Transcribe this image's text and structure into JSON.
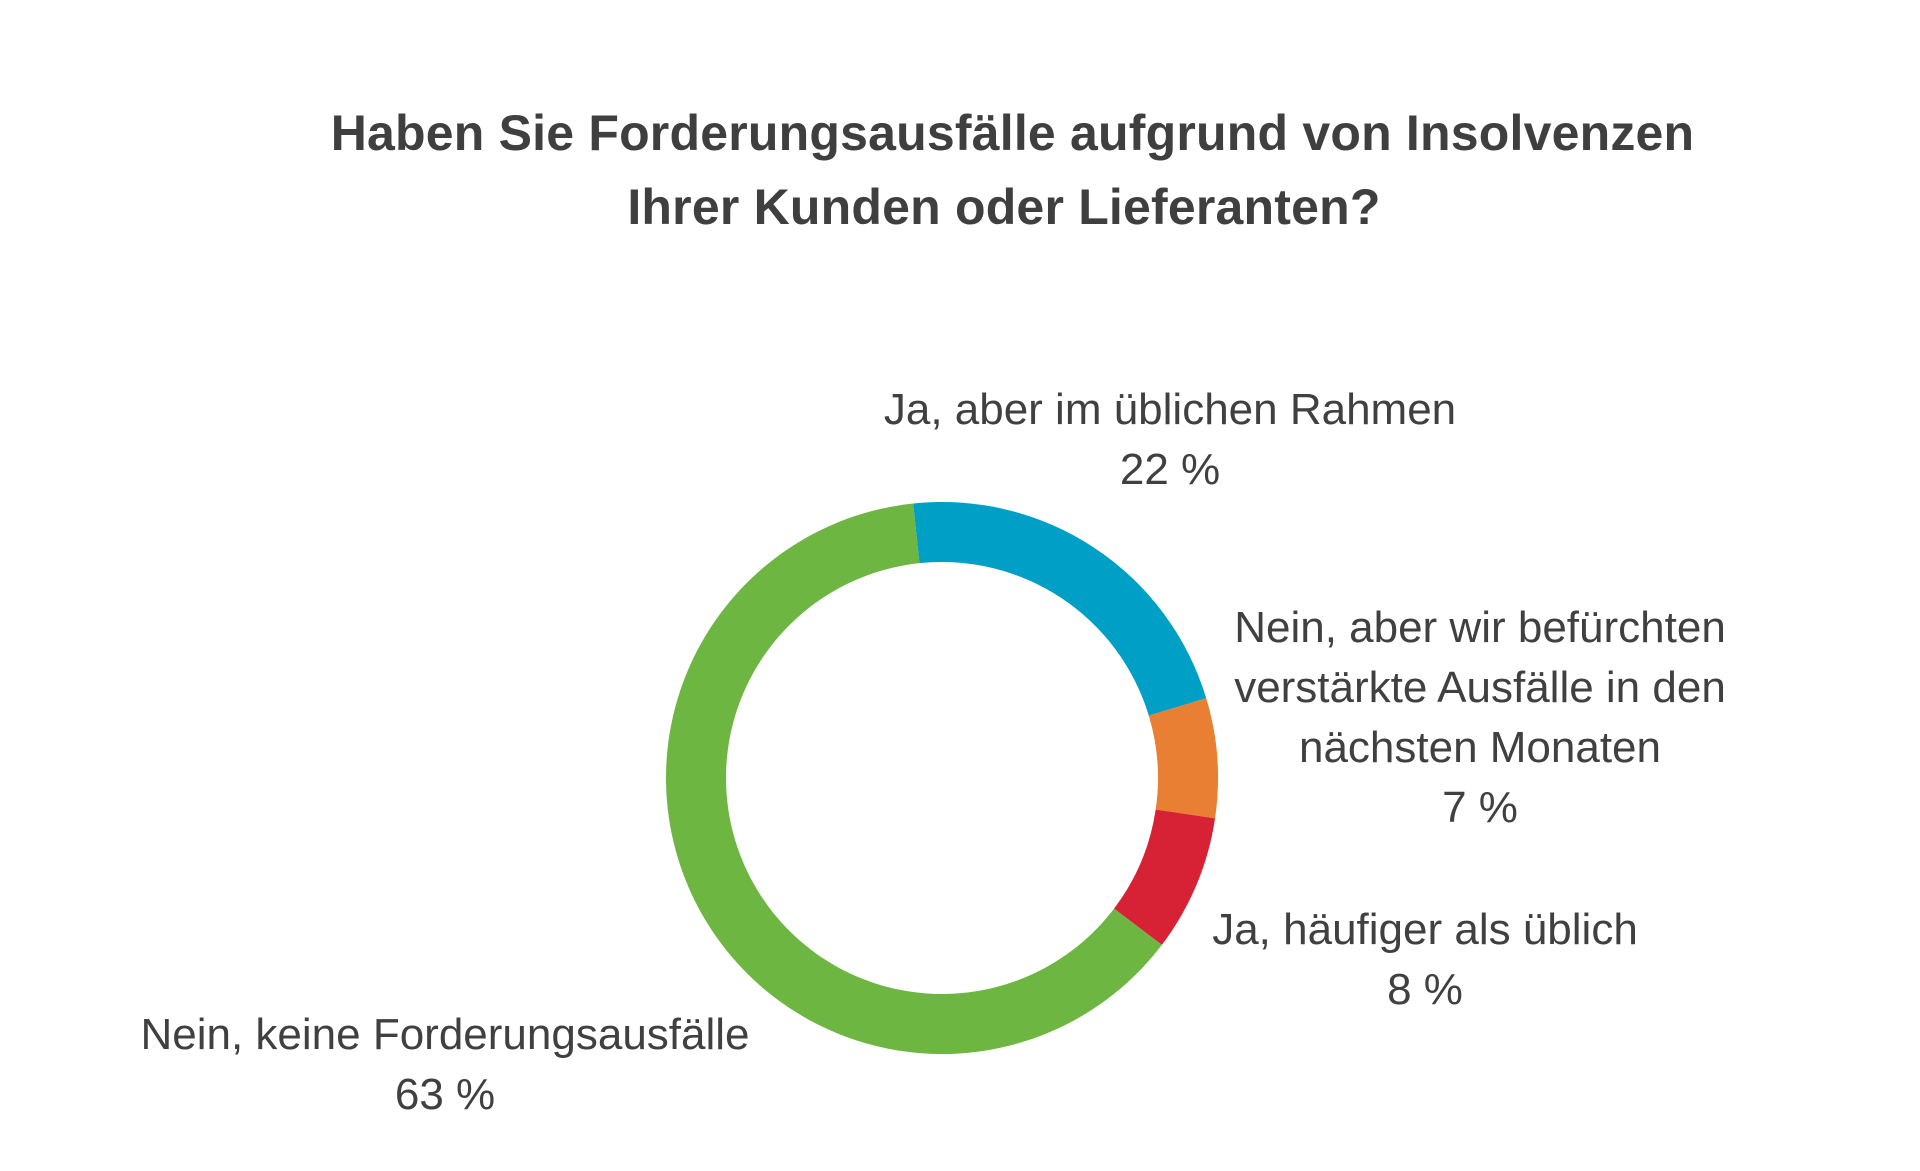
{
  "chart_data": {
    "type": "pie",
    "variant": "donut",
    "title": [
      "Haben Sie Forderungsausfälle aufgrund von Insolvenzen",
      "Ihrer Kunden oder Lieferanten?"
    ],
    "unit": "%",
    "slices": [
      {
        "label": "Ja, aber im üblichen Rahmen",
        "value": 22,
        "value_text": "22  %",
        "color": "#009fc6"
      },
      {
        "label": "Nein, aber wir befürchten verstärkte Ausfälle in den nächsten Monaten",
        "label_lines": [
          "Nein, aber wir befürchten",
          "verstärkte Ausfälle in den",
          "nächsten Monaten"
        ],
        "value": 7,
        "value_text": "7  %",
        "color": "#e87f32"
      },
      {
        "label": "Ja, häufiger als üblich",
        "value": 8,
        "value_text": "8  %",
        "color": "#d72236"
      },
      {
        "label": "Nein, keine Forderungsausfälle",
        "value": 63,
        "value_text": "63  %",
        "color": "#6db641"
      }
    ]
  }
}
